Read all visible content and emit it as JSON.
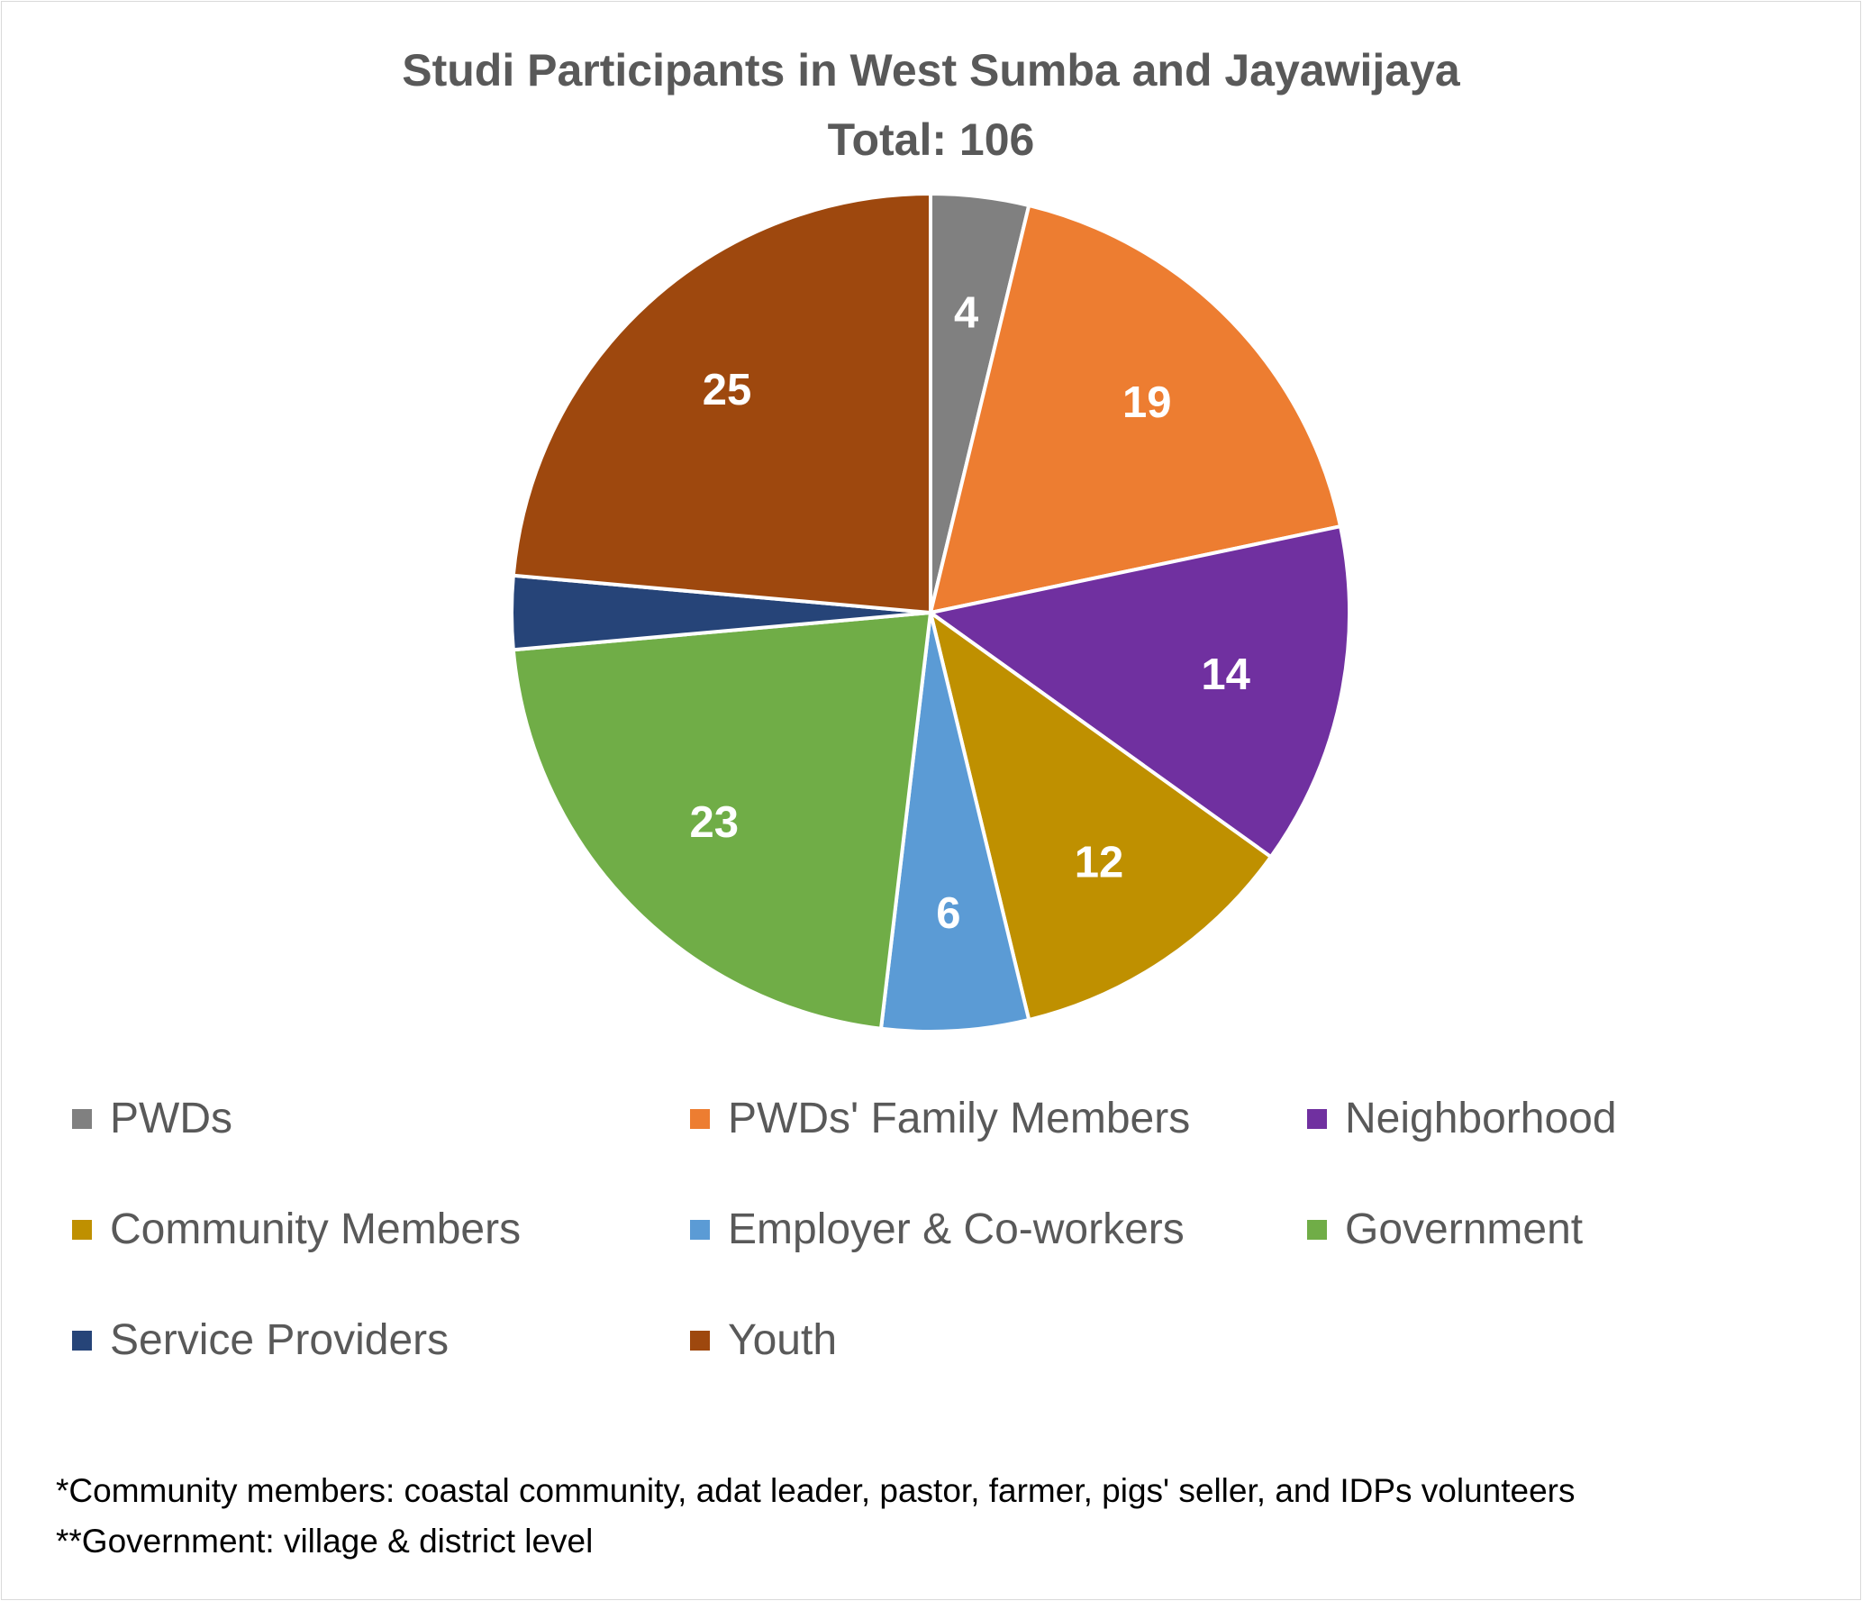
{
  "chart_data": {
    "type": "pie",
    "title": "Studi Participants in West Sumba and Jayawijaya",
    "subtitle": "Total: 106",
    "legend_position": "bottom",
    "slices": [
      {
        "label": "PWDs",
        "value": 4,
        "color": "#808080",
        "show_label": true
      },
      {
        "label": "PWDs' Family Members",
        "value": 19,
        "color": "#ed7d31",
        "show_label": true
      },
      {
        "label": "Neighborhood",
        "value": 14,
        "color": "#7030a0",
        "show_label": true
      },
      {
        "label": "Community Members",
        "value": 12,
        "color": "#bf9000",
        "show_label": true
      },
      {
        "label": "Employer & Co-workers",
        "value": 6,
        "color": "#5b9bd5",
        "show_label": true
      },
      {
        "label": "Government",
        "value": 23,
        "color": "#70ad47",
        "show_label": true
      },
      {
        "label": "Service Providers",
        "value": 3,
        "color": "#264478",
        "show_label": false
      },
      {
        "label": "Youth",
        "value": 25,
        "color": "#9e480e",
        "show_label": true
      }
    ],
    "notes": [
      "*Community members: coastal community, adat leader, pastor, farmer, pigs' seller, and IDPs volunteers",
      "**Government: village & district level"
    ]
  }
}
